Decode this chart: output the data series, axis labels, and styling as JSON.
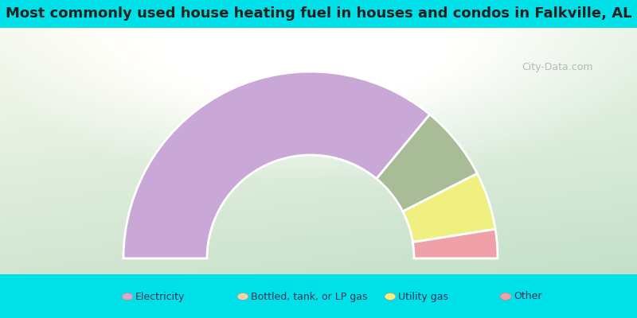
{
  "title": "Most commonly used house heating fuel in houses and condos in Falkville, AL",
  "segments": [
    {
      "label": "Electricity",
      "value": 72.0,
      "color": "#c9a8d8"
    },
    {
      "label": "Bottled, tank, or LP gas",
      "value": 13.0,
      "color": "#a8bc98"
    },
    {
      "label": "Utility gas",
      "value": 10.0,
      "color": "#f0f080"
    },
    {
      "label": "Other",
      "value": 5.0,
      "color": "#f0a0a8"
    }
  ],
  "cyan_color": "#00e0e8",
  "title_fontsize": 13,
  "watermark": "City-Data.com",
  "legend_colors": [
    "#d8a8d0",
    "#e8d8b0",
    "#f0f080",
    "#f0a0a8"
  ]
}
